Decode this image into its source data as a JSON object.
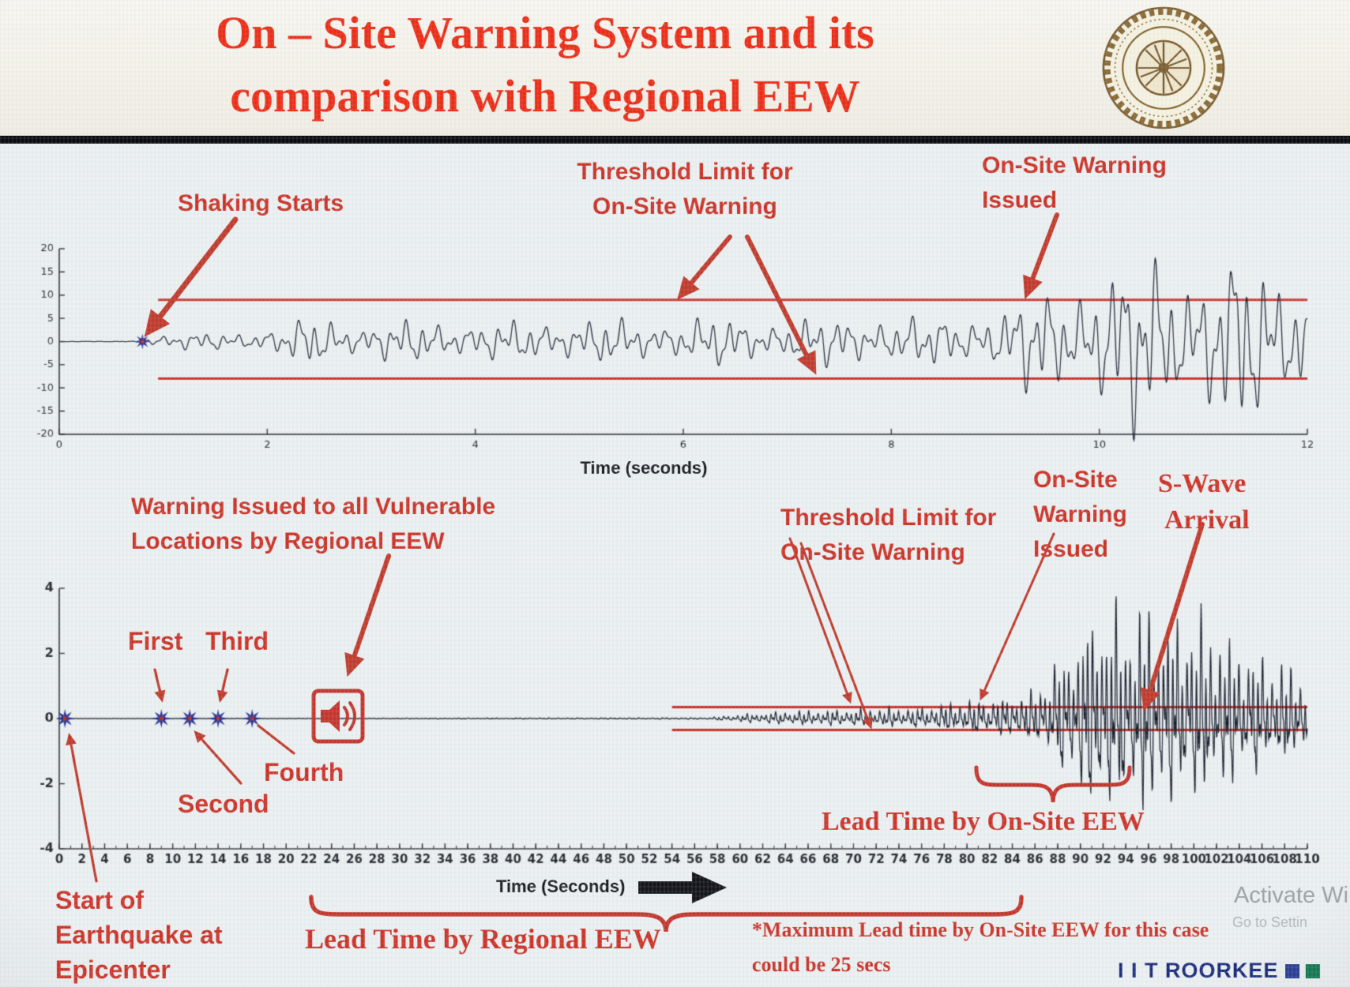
{
  "slide": {
    "title_line1": "On – Site Warning System and its",
    "title_line2": "comparison with Regional EEW",
    "logo_name": "IIT Roorkee seal",
    "footer_brand": "I I T ROORKEE",
    "watermark": {
      "line1": "Activate Wi",
      "line2": "Go to Settin"
    }
  },
  "colors": {
    "title_red": "#ee2c15",
    "annotation_red": "#cd3226",
    "arrow_red": "#c23a2b",
    "threshold_red": "#cc2a22",
    "waveform": "#151a28",
    "brand_navy": "#1d2d7c",
    "footer_square_blue": "#2b3f94",
    "footer_square_green": "#157a52"
  },
  "chart_data": [
    {
      "type": "line",
      "title": "",
      "xlabel": "Time (seconds)",
      "ylabel": "",
      "xlim": [
        0,
        12
      ],
      "xtick_step": 2,
      "ylim": [
        -20,
        20
      ],
      "ytick_step": 5,
      "grid": false,
      "legend": "none",
      "threshold_upper": 9,
      "threshold_lower": -8,
      "threshold_start_t": 0.95,
      "shaking_start_t": 0.8,
      "onsite_warning_issued_t": 9.3,
      "stars": [
        0.8
      ],
      "envelope": [
        [
          0,
          0
        ],
        [
          0.7,
          0.05
        ],
        [
          0.9,
          1.1
        ],
        [
          1.6,
          1.7
        ],
        [
          2.1,
          2.3
        ],
        [
          2.45,
          4.8
        ],
        [
          2.9,
          3.1
        ],
        [
          3.5,
          3.9
        ],
        [
          4.2,
          3.3
        ],
        [
          5,
          4.3
        ],
        [
          5.6,
          3.5
        ],
        [
          6.3,
          4.4
        ],
        [
          7,
          3.7
        ],
        [
          7.7,
          4.6
        ],
        [
          8.4,
          4.1
        ],
        [
          9,
          5.5
        ],
        [
          9.35,
          8.5
        ],
        [
          9.8,
          11
        ],
        [
          10.2,
          14.5
        ],
        [
          10.6,
          16.5
        ],
        [
          11,
          13
        ],
        [
          11.4,
          16
        ],
        [
          11.8,
          14
        ],
        [
          12,
          12.5
        ]
      ],
      "freqs": [
        6.8,
        2.9,
        12.5,
        0.5
      ],
      "seed": 11,
      "annotations": {
        "shaking_starts": "Shaking Starts",
        "threshold_line1": "Threshold Limit for",
        "threshold_line2": "On-Site Warning",
        "issued_line1": "On-Site Warning",
        "issued_line2": "Issued"
      }
    },
    {
      "type": "line",
      "title": "",
      "xlabel": "Time (Seconds)",
      "ylabel": "",
      "xlim": [
        0,
        110
      ],
      "xtick_step": 2,
      "xminor_step": 1,
      "ylim": [
        -4,
        4
      ],
      "ytick_step": 2,
      "grid": false,
      "legend": "none",
      "threshold_upper": 0.35,
      "threshold_lower": -0.35,
      "threshold_start_t": 54,
      "stars": [
        0.5,
        9,
        11.5,
        14,
        17
      ],
      "regional_warning_t": 24.5,
      "onsite_warning_issued_t": 80,
      "s_wave_arrival_t": 95,
      "max_onsite_lead_time_secs": 25,
      "envelope": [
        [
          0,
          0
        ],
        [
          57,
          0.02
        ],
        [
          60,
          0.1
        ],
        [
          64,
          0.18
        ],
        [
          70,
          0.22
        ],
        [
          76,
          0.26
        ],
        [
          79,
          0.4
        ],
        [
          83,
          0.5
        ],
        [
          86,
          0.7
        ],
        [
          88,
          1.4
        ],
        [
          90,
          2.2
        ],
        [
          92,
          2.9
        ],
        [
          94,
          2.5
        ],
        [
          96,
          2.8
        ],
        [
          98,
          2.4
        ],
        [
          100,
          2.6
        ],
        [
          102,
          2.1
        ],
        [
          104,
          1.8
        ],
        [
          106,
          1.5
        ],
        [
          108,
          1.3
        ],
        [
          110,
          1.1
        ]
      ],
      "freqs": [
        2.4,
        1.1,
        4.8,
        0.2
      ],
      "seed": 5,
      "annotations": {
        "regional_line1": "Warning Issued to all Vulnerable",
        "regional_line2": "Locations by Regional EEW",
        "first": "First",
        "second": "Second",
        "third": "Third",
        "fourth": "Fourth",
        "threshold_line1": "Threshold Limit for",
        "threshold_line2": "On-Site Warning",
        "issued_line1": "On-Site",
        "issued_line2": "Warning",
        "issued_line3": "Issued",
        "swave_line1": "S-Wave",
        "swave_line2": "Arrival",
        "start_line1": "Start of",
        "start_line2": "Earthquake at",
        "start_line3": "Epicenter",
        "lead_onsite": "Lead Time by On-Site EEW",
        "lead_regional": "Lead Time by Regional EEW",
        "note_line1": "*Maximum Lead time by On-Site EEW for this case",
        "note_line2": "could be 25 secs"
      }
    }
  ]
}
